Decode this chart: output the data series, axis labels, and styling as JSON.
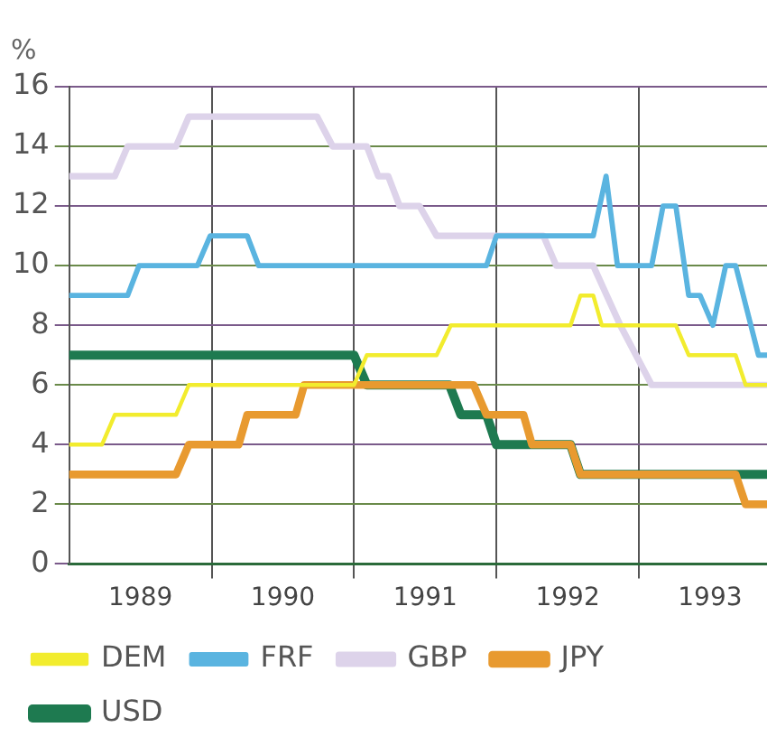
{
  "chart_data": {
    "type": "line",
    "ylabel": "%",
    "xlim": [
      1989,
      1993.9
    ],
    "xticks": [
      {
        "value": 1989.5,
        "label": "1989"
      },
      {
        "value": 1990,
        "label": null
      },
      {
        "value": 1990.5,
        "label": "1990"
      },
      {
        "value": 1991,
        "label": null
      },
      {
        "value": 1991.5,
        "label": "1991"
      },
      {
        "value": 1992,
        "label": null
      },
      {
        "value": 1992.5,
        "label": "1992"
      },
      {
        "value": 1993,
        "label": null
      },
      {
        "value": 1993.5,
        "label": "1993"
      }
    ],
    "ylim": [
      0,
      16
    ],
    "yticks": [
      0,
      2,
      4,
      6,
      8,
      10,
      12,
      14,
      16
    ],
    "grid": true,
    "legend": "bottom",
    "marker": "none",
    "line_style": "solid",
    "series": [
      {
        "name": "DEM",
        "color": "#f2ec2e",
        "x": [
          1989,
          1989.23,
          1989.32,
          1989.75,
          1989.84,
          1991.0,
          1991.09,
          1991.58,
          1991.68,
          1992.52,
          1992.59,
          1992.68,
          1992.74,
          1993.26,
          1993.35,
          1993.68,
          1993.75,
          1993.9
        ],
        "values": [
          4,
          4,
          5,
          5,
          6,
          6,
          7,
          7,
          8,
          8,
          9,
          9,
          8,
          8,
          7,
          7,
          6,
          6
        ]
      },
      {
        "name": "FRF",
        "color": "#5ab4e0",
        "x": [
          1989,
          1989.41,
          1989.49,
          1989.9,
          1989.99,
          1990.25,
          1990.33,
          1991.93,
          1992.0,
          1992.68,
          1992.77,
          1992.85,
          1993.09,
          1993.17,
          1993.26,
          1993.35,
          1993.43,
          1993.52,
          1993.61,
          1993.68,
          1993.84,
          1993.9
        ],
        "values": [
          9,
          9,
          10,
          10,
          11,
          11,
          10,
          10,
          11,
          11,
          13,
          10,
          10,
          12,
          12,
          9,
          9,
          8,
          10,
          10,
          7,
          7
        ]
      },
      {
        "name": "GBP",
        "color": "#ddd3ea",
        "x": [
          1989,
          1989.32,
          1989.41,
          1989.75,
          1989.84,
          1990.74,
          1990.85,
          1991.09,
          1991.17,
          1991.24,
          1991.32,
          1991.46,
          1991.58,
          1992.33,
          1992.42,
          1992.68,
          1992.87,
          1993.09,
          1993.9
        ],
        "values": [
          13,
          13,
          14,
          14,
          15,
          15,
          14,
          14,
          13,
          13,
          12,
          12,
          11,
          11,
          10,
          10,
          8,
          6,
          6
        ]
      },
      {
        "name": "JPY",
        "color": "#e89a30",
        "x": [
          1989,
          1989.75,
          1989.84,
          1990.19,
          1990.25,
          1990.59,
          1990.65,
          1991.84,
          1991.93,
          1992.19,
          1992.25,
          1992.52,
          1992.59,
          1993.68,
          1993.75,
          1993.9
        ],
        "values": [
          3,
          3,
          4,
          4,
          5,
          5,
          6,
          6,
          5,
          5,
          4,
          4,
          3,
          3,
          2,
          2
        ]
      },
      {
        "name": "USD",
        "color": "#1e7a50",
        "x": [
          1989,
          1991.0,
          1991.09,
          1991.67,
          1991.75,
          1991.93,
          1992.0,
          1992.52,
          1992.59,
          1993.9
        ],
        "values": [
          7,
          7,
          6,
          6,
          5,
          5,
          4,
          4,
          3,
          3
        ]
      }
    ]
  }
}
